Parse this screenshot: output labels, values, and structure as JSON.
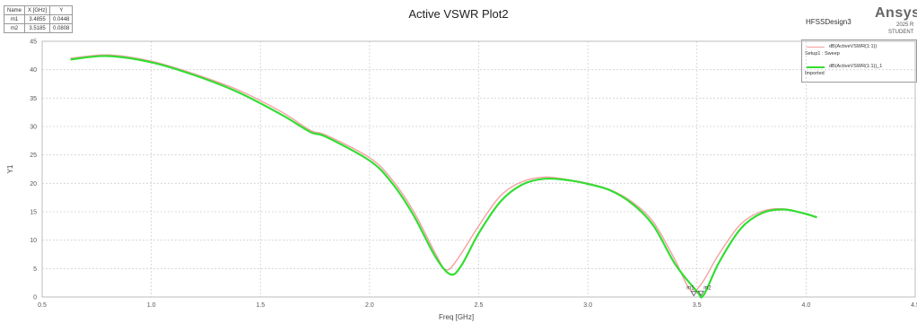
{
  "chart_data": {
    "type": "line",
    "title": "Active VSWR Plot2",
    "xlabel": "Freq [GHz]",
    "ylabel": "Y1",
    "xlim": [
      0.5,
      4.5
    ],
    "ylim": [
      0,
      45
    ],
    "x_ticks": [
      0.5,
      1.0,
      1.5,
      2.0,
      2.5,
      3.0,
      3.5,
      4.0,
      4.5
    ],
    "x_tick_labels": [
      "0.5",
      "1.0",
      "1.5",
      "2.0",
      "2.5",
      "3.0",
      "3.5",
      "4.0",
      "4.5"
    ],
    "y_ticks": [
      0,
      5,
      10,
      15,
      20,
      25,
      30,
      35,
      40,
      45
    ],
    "y_tick_labels": [
      "0",
      "5",
      "10",
      "15",
      "20",
      "25",
      "30",
      "35",
      "40",
      "45"
    ],
    "grid": true,
    "legend_position": "top-right",
    "series": [
      {
        "name": "dB(ActiveVSWR(1:1))",
        "sub": "Setup1 : Sweep",
        "color": "#f4a0a0",
        "x": [
          0.63,
          0.8,
          1.0,
          1.2,
          1.4,
          1.6,
          1.73,
          1.8,
          2.0,
          2.1,
          2.2,
          2.3,
          2.35,
          2.4,
          2.5,
          2.6,
          2.7,
          2.8,
          2.9,
          3.0,
          3.1,
          3.2,
          3.3,
          3.4,
          3.47,
          3.52,
          3.6,
          3.7,
          3.8,
          3.9,
          4.0,
          4.05
        ],
        "y": [
          42.0,
          42.6,
          41.5,
          39.2,
          36.4,
          32.5,
          29.3,
          28.5,
          24.5,
          20.8,
          15.2,
          7.8,
          4.8,
          6.5,
          12.5,
          17.8,
          20.3,
          21.1,
          20.7,
          20.0,
          18.9,
          16.8,
          13.2,
          6.5,
          1.2,
          2.3,
          7.5,
          12.8,
          15.1,
          15.5,
          14.6,
          14.1
        ]
      },
      {
        "name": "dB(ActiveVSWR(1:1))_1",
        "sub": "Imported",
        "color": "#33dd33",
        "x": [
          0.63,
          0.8,
          1.0,
          1.2,
          1.4,
          1.6,
          1.73,
          1.8,
          2.0,
          2.1,
          2.2,
          2.3,
          2.37,
          2.42,
          2.5,
          2.6,
          2.7,
          2.8,
          2.9,
          3.0,
          3.1,
          3.2,
          3.3,
          3.4,
          3.5,
          3.53,
          3.6,
          3.7,
          3.8,
          3.9,
          4.0,
          4.05
        ],
        "y": [
          41.8,
          42.4,
          41.3,
          39.0,
          36.0,
          32.0,
          29.0,
          28.2,
          24.0,
          20.2,
          14.5,
          7.2,
          4.0,
          5.5,
          11.2,
          16.8,
          19.8,
          20.8,
          20.6,
          19.9,
          18.8,
          16.5,
          12.6,
          5.8,
          1.0,
          0.3,
          6.0,
          12.0,
          14.8,
          15.4,
          14.6,
          14.0
        ]
      }
    ]
  },
  "marker_table": {
    "headers": [
      "Name",
      "X [GHz]",
      "Y"
    ],
    "rows": [
      [
        "m1",
        "3.4855",
        "0.0448"
      ],
      [
        "m2",
        "3.5185",
        "0.0808"
      ]
    ]
  },
  "header": {
    "design_label": "HFSSDesign3",
    "brand": "Ansys",
    "brand_sub": [
      "2025 R",
      "STUDENT"
    ]
  },
  "markers": [
    {
      "label": "m1",
      "x": 3.4855,
      "y": 0.0448
    },
    {
      "label": "m2",
      "x": 3.5185,
      "y": 0.0808
    }
  ]
}
